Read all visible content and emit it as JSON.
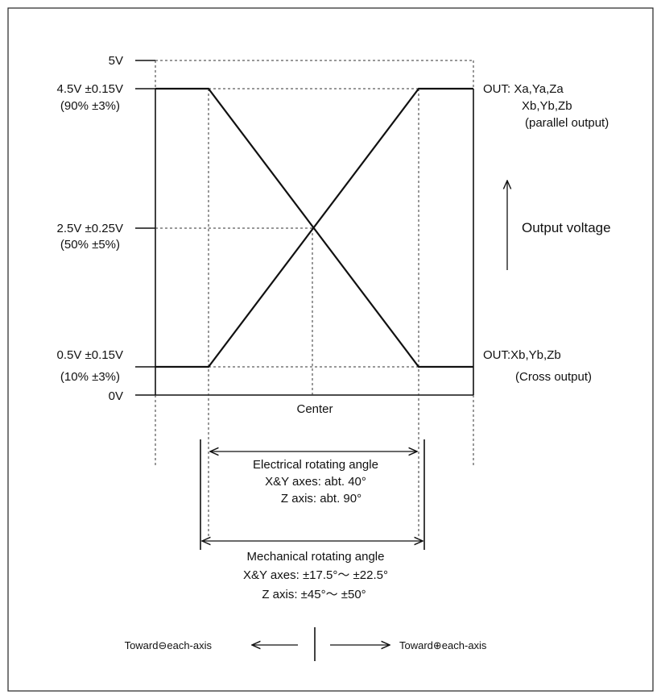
{
  "y_levels": {
    "v5": "5V",
    "v45": "4.5V ±0.15V",
    "v45_pct": "(90% ±3%)",
    "v25": "2.5V ±0.25V",
    "v25_pct": "(50% ±5%)",
    "v05": "0.5V ±0.15V",
    "v05_pct": "(10% ±3%)",
    "v0": "0V"
  },
  "center_label": "Center",
  "out_parallel": {
    "line1": "OUT: Xa,Ya,Za",
    "line2": "Xb,Yb,Zb",
    "line3": "(parallel output)"
  },
  "out_cross": {
    "line1": "OUT:Xb,Yb,Zb",
    "line2": "(Cross output)"
  },
  "output_voltage_label": "Output voltage",
  "electrical": {
    "line1": "Electrical rotating angle",
    "line2": "X&Y axes: abt. 40°",
    "line3": "Z axis: abt. 90°"
  },
  "mechanical": {
    "line1": "Mechanical rotating angle",
    "line2": "X&Y axes: ±17.5°～ ±22.5°",
    "line3": "Z axis: ±45°～ ±50°"
  },
  "direction": {
    "minus": "Toward⊖each-axis",
    "plus": "Toward⊕each-axis"
  }
}
